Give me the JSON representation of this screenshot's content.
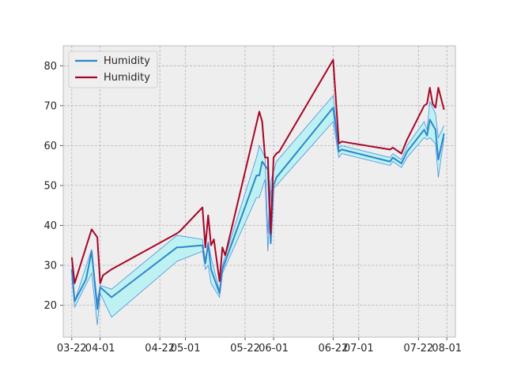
{
  "chart_data": {
    "type": "line",
    "title": "",
    "xlabel": "",
    "ylabel": "",
    "x_axis": "date",
    "xlim": [
      "2023-03-19",
      "2023-08-04"
    ],
    "ylim": [
      12,
      85
    ],
    "grid": true,
    "legend_position": "top-left",
    "xticks": [
      {
        "date": "2023-03-22",
        "label": "03-22"
      },
      {
        "date": "2023-04-01",
        "label": "04-01"
      },
      {
        "date": "2023-04-22",
        "label": "04-22"
      },
      {
        "date": "2023-05-01",
        "label": "05-01"
      },
      {
        "date": "2023-05-22",
        "label": "05-22"
      },
      {
        "date": "2023-06-01",
        "label": "06-01"
      },
      {
        "date": "2023-06-22",
        "label": "06-22"
      },
      {
        "date": "2023-07-01",
        "label": "07-01"
      },
      {
        "date": "2023-07-22",
        "label": "07-22"
      },
      {
        "date": "2023-08-01",
        "label": "08-01"
      }
    ],
    "yticks": [
      20,
      30,
      40,
      50,
      60,
      70,
      80
    ],
    "band": {
      "color": "#b8f2f2",
      "edge_color": "#4a8fe0",
      "upper": [
        [
          "2023-03-22",
          30
        ],
        [
          "2023-03-23",
          21
        ],
        [
          "2023-03-29",
          34
        ],
        [
          "2023-03-31",
          21
        ],
        [
          "2023-04-01",
          25
        ],
        [
          "2023-04-05",
          24
        ],
        [
          "2023-04-28",
          37.5
        ],
        [
          "2023-05-07",
          36.5
        ],
        [
          "2023-05-08",
          31
        ],
        [
          "2023-05-09",
          36
        ],
        [
          "2023-05-10",
          32
        ],
        [
          "2023-05-13",
          23.5
        ],
        [
          "2023-05-14",
          30
        ],
        [
          "2023-05-26",
          57
        ],
        [
          "2023-05-27",
          60
        ],
        [
          "2023-05-29",
          57
        ],
        [
          "2023-05-30",
          38
        ],
        [
          "2023-05-31",
          51
        ],
        [
          "2023-06-02",
          56
        ],
        [
          "2023-06-22",
          72.5
        ],
        [
          "2023-06-24",
          59.5
        ],
        [
          "2023-06-25",
          60
        ],
        [
          "2023-07-12",
          57
        ],
        [
          "2023-07-13",
          58
        ],
        [
          "2023-07-16",
          56.5
        ],
        [
          "2023-07-18",
          60
        ],
        [
          "2023-07-24",
          66
        ],
        [
          "2023-07-25",
          64
        ],
        [
          "2023-07-26",
          71
        ],
        [
          "2023-07-28",
          68
        ],
        [
          "2023-07-29",
          62
        ],
        [
          "2023-07-31",
          65
        ]
      ],
      "lower": [
        [
          "2023-03-22",
          27
        ],
        [
          "2023-03-23",
          19.5
        ],
        [
          "2023-03-29",
          28
        ],
        [
          "2023-03-31",
          15
        ],
        [
          "2023-04-01",
          23
        ],
        [
          "2023-04-05",
          17
        ],
        [
          "2023-04-28",
          31
        ],
        [
          "2023-05-07",
          33.5
        ],
        [
          "2023-05-08",
          29
        ],
        [
          "2023-05-09",
          30
        ],
        [
          "2023-05-10",
          25.5
        ],
        [
          "2023-05-13",
          22
        ],
        [
          "2023-05-14",
          28
        ],
        [
          "2023-05-26",
          47
        ],
        [
          "2023-05-27",
          47
        ],
        [
          "2023-05-29",
          51.5
        ],
        [
          "2023-05-30",
          33.5
        ],
        [
          "2023-05-31",
          48.5
        ],
        [
          "2023-06-02",
          50
        ],
        [
          "2023-06-22",
          66
        ],
        [
          "2023-06-24",
          57
        ],
        [
          "2023-06-25",
          58
        ],
        [
          "2023-07-12",
          55
        ],
        [
          "2023-07-13",
          56
        ],
        [
          "2023-07-16",
          54.5
        ],
        [
          "2023-07-18",
          57
        ],
        [
          "2023-07-24",
          62
        ],
        [
          "2023-07-25",
          61.5
        ],
        [
          "2023-07-26",
          62
        ],
        [
          "2023-07-28",
          60.5
        ],
        [
          "2023-07-29",
          52
        ],
        [
          "2023-07-31",
          62
        ]
      ]
    },
    "series": [
      {
        "name": "Humidity",
        "color": "#2e86c9",
        "points": [
          [
            "2023-03-22",
            29
          ],
          [
            "2023-03-23",
            21
          ],
          [
            "2023-03-27",
            26.5
          ],
          [
            "2023-03-29",
            33.5
          ],
          [
            "2023-03-31",
            19
          ],
          [
            "2023-04-01",
            24.5
          ],
          [
            "2023-04-05",
            22
          ],
          [
            "2023-04-28",
            34.5
          ],
          [
            "2023-04-29",
            34.5
          ],
          [
            "2023-05-07",
            35
          ],
          [
            "2023-05-08",
            30.5
          ],
          [
            "2023-05-09",
            35.5
          ],
          [
            "2023-05-10",
            29
          ],
          [
            "2023-05-13",
            23
          ],
          [
            "2023-05-14",
            29
          ],
          [
            "2023-05-26",
            52.5
          ],
          [
            "2023-05-27",
            52.5
          ],
          [
            "2023-05-28",
            56
          ],
          [
            "2023-05-30",
            54
          ],
          [
            "2023-05-31",
            35.5
          ],
          [
            "2023-06-01",
            50
          ],
          [
            "2023-06-02",
            52
          ],
          [
            "2023-06-22",
            69.5
          ],
          [
            "2023-06-24",
            58.5
          ],
          [
            "2023-06-25",
            59
          ],
          [
            "2023-07-12",
            56
          ],
          [
            "2023-07-13",
            57
          ],
          [
            "2023-07-16",
            55.5
          ],
          [
            "2023-07-18",
            58.5
          ],
          [
            "2023-07-24",
            64
          ],
          [
            "2023-07-25",
            62.5
          ],
          [
            "2023-07-26",
            66.5
          ],
          [
            "2023-07-28",
            64
          ],
          [
            "2023-07-29",
            56.5
          ],
          [
            "2023-07-31",
            63
          ]
        ]
      },
      {
        "name": "Humidity",
        "color": "#a60628",
        "points": [
          [
            "2023-03-22",
            32
          ],
          [
            "2023-03-23",
            25.5
          ],
          [
            "2023-03-29",
            39
          ],
          [
            "2023-03-31",
            37
          ],
          [
            "2023-04-01",
            25.5
          ],
          [
            "2023-04-02",
            27.5
          ],
          [
            "2023-04-05",
            29
          ],
          [
            "2023-04-28",
            38
          ],
          [
            "2023-04-29",
            38.5
          ],
          [
            "2023-05-07",
            44.5
          ],
          [
            "2023-05-08",
            34.5
          ],
          [
            "2023-05-09",
            42.5
          ],
          [
            "2023-05-10",
            35
          ],
          [
            "2023-05-11",
            36.5
          ],
          [
            "2023-05-13",
            26
          ],
          [
            "2023-05-14",
            34.5
          ],
          [
            "2023-05-15",
            32.5
          ],
          [
            "2023-05-27",
            68.5
          ],
          [
            "2023-05-28",
            66
          ],
          [
            "2023-05-29",
            57
          ],
          [
            "2023-05-30",
            57
          ],
          [
            "2023-05-31",
            38
          ],
          [
            "2023-06-01",
            57
          ],
          [
            "2023-06-02",
            58
          ],
          [
            "2023-06-03",
            58.5
          ],
          [
            "2023-06-22",
            81.5
          ],
          [
            "2023-06-24",
            60.5
          ],
          [
            "2023-06-25",
            61
          ],
          [
            "2023-07-12",
            59
          ],
          [
            "2023-07-13",
            59.5
          ],
          [
            "2023-07-16",
            58
          ],
          [
            "2023-07-18",
            61.5
          ],
          [
            "2023-07-24",
            70
          ],
          [
            "2023-07-25",
            70.5
          ],
          [
            "2023-07-26",
            74.5
          ],
          [
            "2023-07-27",
            70.5
          ],
          [
            "2023-07-28",
            69.5
          ],
          [
            "2023-07-29",
            74.5
          ],
          [
            "2023-07-31",
            69
          ]
        ]
      }
    ]
  }
}
